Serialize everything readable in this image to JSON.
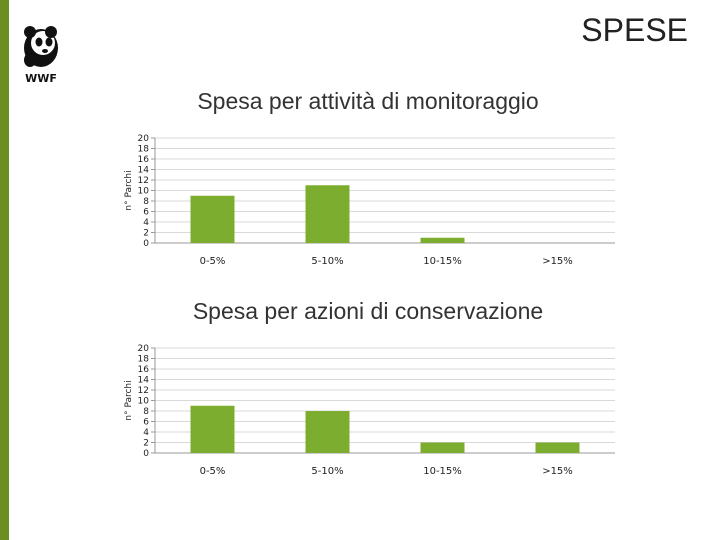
{
  "page": {
    "title": "SPESE",
    "logo_text": "WWF",
    "accent_color": "#6b8e23"
  },
  "chart_data": [
    {
      "type": "bar",
      "title": "Spesa per attività di monitoraggio",
      "ylabel": "n° Parchi",
      "xlabel": "",
      "categories": [
        "0-5%",
        "5-10%",
        "10-15%",
        ">15%"
      ],
      "values": [
        9,
        11,
        1,
        0
      ],
      "ylim": [
        0,
        20
      ],
      "yticks": [
        "20",
        "18",
        "16",
        "14",
        "12",
        "10",
        "8",
        "6",
        "4",
        "2",
        "0"
      ],
      "grid": true,
      "bar_color": "#7cad2f"
    },
    {
      "type": "bar",
      "title": "Spesa per azioni di conservazione",
      "ylabel": "n° Parchi",
      "xlabel": "",
      "categories": [
        "0-5%",
        "5-10%",
        "10-15%",
        ">15%"
      ],
      "values": [
        9,
        8,
        2,
        2
      ],
      "ylim": [
        0,
        20
      ],
      "yticks": [
        "20",
        "18",
        "16",
        "14",
        "12",
        "10",
        "8",
        "6",
        "4",
        "2",
        "0"
      ],
      "grid": true,
      "bar_color": "#7cad2f"
    }
  ]
}
